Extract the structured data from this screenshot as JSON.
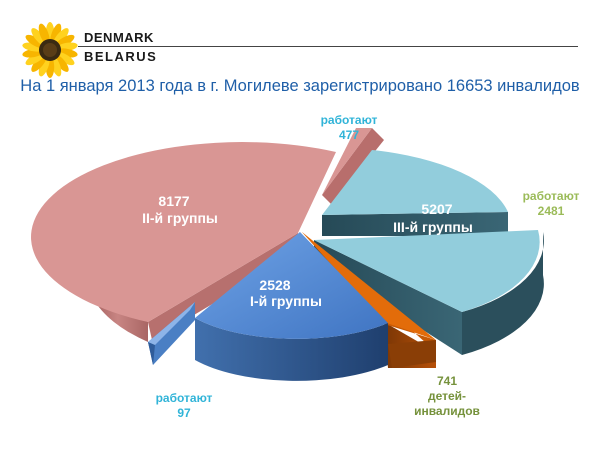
{
  "logo": {
    "line1": "DENMARK",
    "line2": "BELARUS",
    "icon": "sunflower-icon"
  },
  "title": "На 1 января 2013 года в г. Могилеве зарегистрировано 16653 инвалидов",
  "chart_data": {
    "type": "pie",
    "title": "На 1 января 2013 года в г. Могилеве зарегистрировано 16653 инвалидов",
    "total": 16653,
    "slices": [
      {
        "key": "g3",
        "value": 5207,
        "label": [
          "5207",
          "III-й группы"
        ],
        "color": "#92cddc"
      },
      {
        "key": "g3w",
        "value": 2481,
        "label": [
          "работают",
          "2481"
        ],
        "color": "#92cddc",
        "exploded": true
      },
      {
        "key": "kids",
        "value": 741,
        "label": [
          "741",
          "детей-",
          "инвалидов"
        ],
        "color": "#e36c0a"
      },
      {
        "key": "g1",
        "value": 2528,
        "label": [
          "2528",
          "I-й группы"
        ],
        "color": "#558ed5"
      },
      {
        "key": "g1w",
        "value": 97,
        "label": [
          "работают",
          "97"
        ],
        "color": "#558ed5",
        "exploded": true
      },
      {
        "key": "g2",
        "value": 8177,
        "label": [
          "8177",
          "II-й группы"
        ],
        "color": "#d99694"
      },
      {
        "key": "g2w",
        "value": 477,
        "label": [
          "работают",
          "477"
        ],
        "color": "#d99694",
        "exploded": true
      }
    ],
    "label_colors": {
      "inside": "#ffffff",
      "g2w": "#31b4d8",
      "g3w": "#9bbb59",
      "g1w": "#31b4d8",
      "kids": "#76923c"
    }
  }
}
